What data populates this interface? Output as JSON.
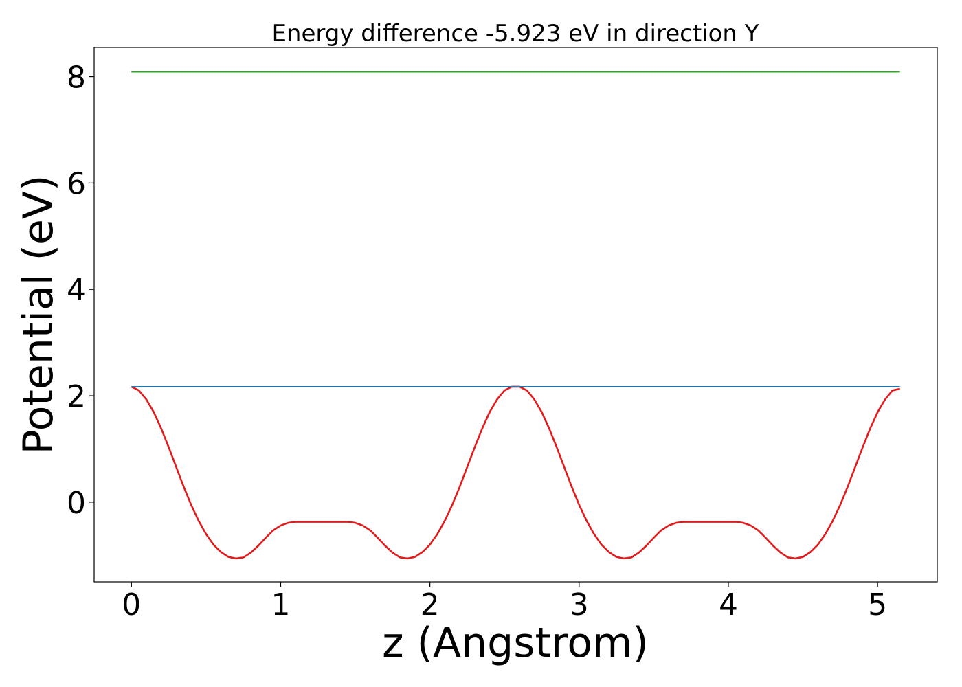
{
  "chart_data": {
    "type": "line",
    "title": "Energy difference -5.923 eV in direction Y",
    "xlabel": "z (Angstrom)",
    "ylabel": "Potential (eV)",
    "xlim": [
      -0.25,
      5.4
    ],
    "ylim": [
      -1.5,
      8.55
    ],
    "grid": false,
    "xticks": [
      0,
      1,
      2,
      3,
      4,
      5
    ],
    "yticks": [
      0,
      2,
      4,
      6,
      8
    ],
    "colors": {
      "potential": "#e31a1c",
      "level_low": "#1f78b4",
      "level_high": "#33a02c"
    },
    "series": [
      {
        "key": "potential",
        "x": [
          0.0,
          0.05,
          0.1,
          0.15,
          0.2,
          0.25,
          0.3,
          0.35,
          0.4,
          0.45,
          0.5,
          0.55,
          0.6,
          0.65,
          0.7,
          0.75,
          0.8,
          0.85,
          0.9,
          0.95,
          1.0,
          1.05,
          1.1,
          1.15,
          1.2,
          1.25,
          1.3,
          1.35,
          1.4,
          1.45,
          1.5,
          1.55,
          1.6,
          1.65,
          1.7,
          1.75,
          1.8,
          1.85,
          1.9,
          1.95,
          2.0,
          2.05,
          2.1,
          2.15,
          2.2,
          2.25,
          2.3,
          2.35,
          2.4,
          2.45,
          2.5,
          2.55,
          2.6,
          2.65,
          2.7,
          2.75,
          2.8,
          2.85,
          2.9,
          2.95,
          3.0,
          3.05,
          3.1,
          3.15,
          3.2,
          3.25,
          3.3,
          3.35,
          3.4,
          3.45,
          3.5,
          3.55,
          3.6,
          3.65,
          3.7,
          3.75,
          3.8,
          3.85,
          3.9,
          3.95,
          4.0,
          4.05,
          4.1,
          4.15,
          4.2,
          4.25,
          4.3,
          4.35,
          4.4,
          4.45,
          4.5,
          4.55,
          4.6,
          4.65,
          4.7,
          4.75,
          4.8,
          4.85,
          4.9,
          4.95,
          5.0,
          5.05,
          5.1,
          5.15
        ],
        "y": [
          2.17,
          2.1,
          1.93,
          1.69,
          1.38,
          1.03,
          0.66,
          0.29,
          -0.05,
          -0.35,
          -0.6,
          -0.8,
          -0.94,
          -1.03,
          -1.06,
          -1.04,
          -0.95,
          -0.82,
          -0.67,
          -0.53,
          -0.44,
          -0.39,
          -0.37,
          -0.37,
          -0.37,
          -0.37,
          -0.37,
          -0.37,
          -0.37,
          -0.37,
          -0.39,
          -0.44,
          -0.53,
          -0.67,
          -0.82,
          -0.95,
          -1.04,
          -1.06,
          -1.03,
          -0.94,
          -0.8,
          -0.6,
          -0.35,
          -0.05,
          0.29,
          0.66,
          1.03,
          1.38,
          1.69,
          1.93,
          2.1,
          2.17,
          2.17,
          2.1,
          1.93,
          1.69,
          1.38,
          1.03,
          0.66,
          0.29,
          -0.05,
          -0.35,
          -0.6,
          -0.8,
          -0.94,
          -1.03,
          -1.06,
          -1.04,
          -0.95,
          -0.82,
          -0.67,
          -0.53,
          -0.44,
          -0.39,
          -0.37,
          -0.37,
          -0.37,
          -0.37,
          -0.37,
          -0.37,
          -0.37,
          -0.37,
          -0.39,
          -0.44,
          -0.53,
          -0.67,
          -0.82,
          -0.95,
          -1.04,
          -1.06,
          -1.03,
          -0.94,
          -0.8,
          -0.6,
          -0.35,
          -0.05,
          0.29,
          0.66,
          1.03,
          1.38,
          1.69,
          1.93,
          2.1,
          2.13
        ]
      },
      {
        "key": "level_low",
        "x": [
          0.0,
          5.15
        ],
        "y": [
          2.17,
          2.17
        ]
      },
      {
        "key": "level_high",
        "x": [
          0.0,
          5.15
        ],
        "y": [
          8.09,
          8.09
        ]
      }
    ]
  }
}
